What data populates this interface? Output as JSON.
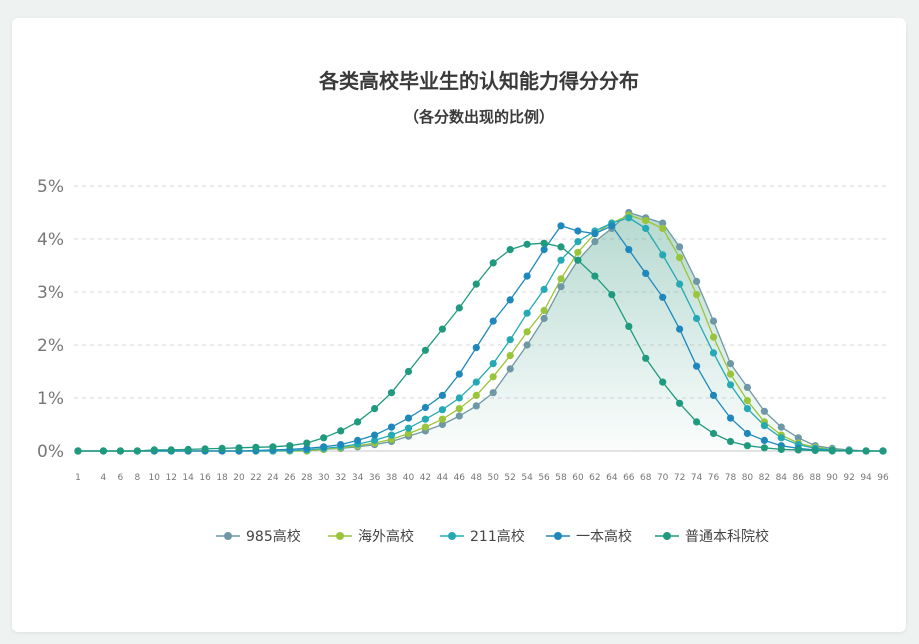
{
  "chart_data": {
    "type": "line",
    "title": "各类高校毕业生的认知能力得分分布",
    "subtitle": "（各分数出现的比例）",
    "xlabel": "",
    "ylabel": "",
    "y_ticks": [
      "0%",
      "1%",
      "2%",
      "3%",
      "4%",
      "5%"
    ],
    "ylim": [
      0,
      5
    ],
    "xlim": [
      1,
      96
    ],
    "x_ticks": [
      "1",
      "4",
      "6",
      "8",
      "10",
      "12",
      "14",
      "16",
      "18",
      "20",
      "22",
      "24",
      "26",
      "28",
      "30",
      "32",
      "34",
      "36",
      "38",
      "40",
      "42",
      "44",
      "46",
      "48",
      "50",
      "52",
      "54",
      "56",
      "58",
      "60",
      "62",
      "64",
      "66",
      "68",
      "70",
      "72",
      "74",
      "76",
      "78",
      "80",
      "82",
      "84",
      "86",
      "88",
      "90",
      "92",
      "94",
      "96"
    ],
    "grid": "horizontal-dashed",
    "legend_position": "bottom",
    "series": [
      {
        "name": "985高校",
        "color": "#6f98a6",
        "points": [
          [
            1,
            0
          ],
          [
            4,
            0
          ],
          [
            6,
            0
          ],
          [
            8,
            0
          ],
          [
            10,
            0
          ],
          [
            12,
            0
          ],
          [
            14,
            0
          ],
          [
            16,
            0
          ],
          [
            18,
            0
          ],
          [
            20,
            0
          ],
          [
            22,
            0
          ],
          [
            24,
            0
          ],
          [
            26,
            0
          ],
          [
            28,
            0
          ],
          [
            30,
            0.03
          ],
          [
            32,
            0.05
          ],
          [
            34,
            0.08
          ],
          [
            36,
            0.12
          ],
          [
            38,
            0.18
          ],
          [
            40,
            0.28
          ],
          [
            42,
            0.38
          ],
          [
            44,
            0.5
          ],
          [
            46,
            0.66
          ],
          [
            48,
            0.85
          ],
          [
            50,
            1.1
          ],
          [
            52,
            1.55
          ],
          [
            54,
            2.0
          ],
          [
            56,
            2.5
          ],
          [
            58,
            3.1
          ],
          [
            60,
            3.6
          ],
          [
            62,
            3.95
          ],
          [
            64,
            4.2
          ],
          [
            66,
            4.5
          ],
          [
            68,
            4.4
          ],
          [
            70,
            4.3
          ],
          [
            72,
            3.85
          ],
          [
            74,
            3.2
          ],
          [
            76,
            2.45
          ],
          [
            78,
            1.65
          ],
          [
            80,
            1.2
          ],
          [
            82,
            0.75
          ],
          [
            84,
            0.45
          ],
          [
            86,
            0.25
          ],
          [
            88,
            0.1
          ],
          [
            90,
            0.05
          ],
          [
            92,
            0.02
          ],
          [
            94,
            0
          ],
          [
            96,
            0
          ]
        ]
      },
      {
        "name": "海外高校",
        "color": "#9ac43a",
        "points": [
          [
            1,
            0
          ],
          [
            4,
            0
          ],
          [
            6,
            0
          ],
          [
            8,
            0
          ],
          [
            10,
            0
          ],
          [
            12,
            0
          ],
          [
            14,
            0
          ],
          [
            16,
            0
          ],
          [
            18,
            0
          ],
          [
            20,
            0
          ],
          [
            22,
            0
          ],
          [
            24,
            0
          ],
          [
            26,
            0
          ],
          [
            28,
            0
          ],
          [
            30,
            0.03
          ],
          [
            32,
            0.06
          ],
          [
            34,
            0.1
          ],
          [
            36,
            0.15
          ],
          [
            38,
            0.22
          ],
          [
            40,
            0.33
          ],
          [
            42,
            0.45
          ],
          [
            44,
            0.6
          ],
          [
            46,
            0.8
          ],
          [
            48,
            1.05
          ],
          [
            50,
            1.4
          ],
          [
            52,
            1.8
          ],
          [
            54,
            2.25
          ],
          [
            56,
            2.65
          ],
          [
            58,
            3.25
          ],
          [
            60,
            3.75
          ],
          [
            62,
            4.1
          ],
          [
            64,
            4.3
          ],
          [
            66,
            4.45
          ],
          [
            68,
            4.35
          ],
          [
            70,
            4.2
          ],
          [
            72,
            3.65
          ],
          [
            74,
            2.95
          ],
          [
            76,
            2.15
          ],
          [
            78,
            1.45
          ],
          [
            80,
            0.95
          ],
          [
            82,
            0.55
          ],
          [
            84,
            0.3
          ],
          [
            86,
            0.15
          ],
          [
            88,
            0.07
          ],
          [
            90,
            0.03
          ],
          [
            92,
            0.01
          ],
          [
            94,
            0
          ],
          [
            96,
            0
          ]
        ]
      },
      {
        "name": "211高校",
        "color": "#25aab5",
        "points": [
          [
            1,
            0
          ],
          [
            4,
            0
          ],
          [
            6,
            0
          ],
          [
            8,
            0
          ],
          [
            10,
            0
          ],
          [
            12,
            0
          ],
          [
            14,
            0
          ],
          [
            16,
            0
          ],
          [
            18,
            0
          ],
          [
            20,
            0
          ],
          [
            22,
            0
          ],
          [
            24,
            0
          ],
          [
            26,
            0.01
          ],
          [
            28,
            0.02
          ],
          [
            30,
            0.05
          ],
          [
            32,
            0.08
          ],
          [
            34,
            0.13
          ],
          [
            36,
            0.2
          ],
          [
            38,
            0.3
          ],
          [
            40,
            0.43
          ],
          [
            42,
            0.6
          ],
          [
            44,
            0.78
          ],
          [
            46,
            1.0
          ],
          [
            48,
            1.3
          ],
          [
            50,
            1.65
          ],
          [
            52,
            2.1
          ],
          [
            54,
            2.6
          ],
          [
            56,
            3.05
          ],
          [
            58,
            3.6
          ],
          [
            60,
            3.95
          ],
          [
            62,
            4.15
          ],
          [
            64,
            4.3
          ],
          [
            66,
            4.4
          ],
          [
            68,
            4.2
          ],
          [
            70,
            3.7
          ],
          [
            72,
            3.15
          ],
          [
            74,
            2.5
          ],
          [
            76,
            1.85
          ],
          [
            78,
            1.25
          ],
          [
            80,
            0.8
          ],
          [
            82,
            0.48
          ],
          [
            84,
            0.25
          ],
          [
            86,
            0.12
          ],
          [
            88,
            0.05
          ],
          [
            90,
            0.02
          ],
          [
            92,
            0.01
          ],
          [
            94,
            0
          ],
          [
            96,
            0
          ]
        ]
      },
      {
        "name": "一本高校",
        "color": "#1e88bd",
        "points": [
          [
            1,
            0
          ],
          [
            4,
            0
          ],
          [
            6,
            0
          ],
          [
            8,
            0
          ],
          [
            10,
            0
          ],
          [
            12,
            0
          ],
          [
            14,
            0
          ],
          [
            16,
            0
          ],
          [
            18,
            0
          ],
          [
            20,
            0
          ],
          [
            22,
            0.01
          ],
          [
            24,
            0.02
          ],
          [
            26,
            0.03
          ],
          [
            28,
            0.05
          ],
          [
            30,
            0.08
          ],
          [
            32,
            0.12
          ],
          [
            34,
            0.2
          ],
          [
            36,
            0.3
          ],
          [
            38,
            0.45
          ],
          [
            40,
            0.62
          ],
          [
            42,
            0.82
          ],
          [
            44,
            1.05
          ],
          [
            46,
            1.45
          ],
          [
            48,
            1.95
          ],
          [
            50,
            2.45
          ],
          [
            52,
            2.85
          ],
          [
            54,
            3.3
          ],
          [
            56,
            3.8
          ],
          [
            58,
            4.25
          ],
          [
            60,
            4.15
          ],
          [
            62,
            4.1
          ],
          [
            64,
            4.25
          ],
          [
            66,
            3.8
          ],
          [
            68,
            3.35
          ],
          [
            70,
            2.9
          ],
          [
            72,
            2.3
          ],
          [
            74,
            1.6
          ],
          [
            76,
            1.05
          ],
          [
            78,
            0.62
          ],
          [
            80,
            0.33
          ],
          [
            82,
            0.2
          ],
          [
            84,
            0.1
          ],
          [
            86,
            0.05
          ],
          [
            88,
            0.02
          ],
          [
            90,
            0.01
          ],
          [
            92,
            0
          ],
          [
            94,
            0
          ],
          [
            96,
            0
          ]
        ]
      },
      {
        "name": "普通本科院校",
        "color": "#1f9a7e",
        "points": [
          [
            1,
            0
          ],
          [
            4,
            0
          ],
          [
            6,
            0
          ],
          [
            8,
            0
          ],
          [
            10,
            0.02
          ],
          [
            12,
            0.02
          ],
          [
            14,
            0.03
          ],
          [
            16,
            0.04
          ],
          [
            18,
            0.05
          ],
          [
            20,
            0.06
          ],
          [
            22,
            0.07
          ],
          [
            24,
            0.08
          ],
          [
            26,
            0.1
          ],
          [
            28,
            0.15
          ],
          [
            30,
            0.25
          ],
          [
            32,
            0.38
          ],
          [
            34,
            0.55
          ],
          [
            36,
            0.8
          ],
          [
            38,
            1.1
          ],
          [
            40,
            1.5
          ],
          [
            42,
            1.9
          ],
          [
            44,
            2.3
          ],
          [
            46,
            2.7
          ],
          [
            48,
            3.15
          ],
          [
            50,
            3.55
          ],
          [
            52,
            3.8
          ],
          [
            54,
            3.9
          ],
          [
            56,
            3.92
          ],
          [
            58,
            3.85
          ],
          [
            60,
            3.6
          ],
          [
            62,
            3.3
          ],
          [
            64,
            2.95
          ],
          [
            66,
            2.35
          ],
          [
            68,
            1.75
          ],
          [
            70,
            1.3
          ],
          [
            72,
            0.9
          ],
          [
            74,
            0.55
          ],
          [
            76,
            0.33
          ],
          [
            78,
            0.18
          ],
          [
            80,
            0.1
          ],
          [
            82,
            0.06
          ],
          [
            84,
            0.03
          ],
          [
            86,
            0.02
          ],
          [
            88,
            0.01
          ],
          [
            90,
            0
          ],
          [
            92,
            0
          ],
          [
            94,
            0
          ],
          [
            96,
            0
          ]
        ]
      }
    ]
  }
}
